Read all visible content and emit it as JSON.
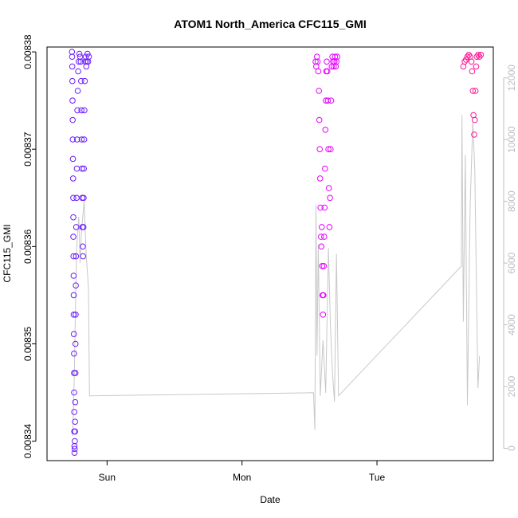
{
  "chart_data": {
    "type": "scatter",
    "title": "ATOM1 North_America CFC115_GMI",
    "xlabel": "Date",
    "ylabel": "CFC115_GMI",
    "x_ticks": [
      {
        "day": 1,
        "label": "Sun"
      },
      {
        "day": 2,
        "label": "Mon"
      },
      {
        "day": 3,
        "label": "Tue"
      }
    ],
    "xlim": [
      0.555,
      3.862
    ],
    "ylim": [
      0.008338,
      0.0083805
    ],
    "y_ticks": [
      {
        "value": 0.00834,
        "label": "0.00834"
      },
      {
        "value": 0.00835,
        "label": "0.00835"
      },
      {
        "value": 0.00836,
        "label": "0.00836"
      },
      {
        "value": 0.00837,
        "label": "0.00837"
      },
      {
        "value": 0.00838,
        "label": "0.00838"
      }
    ],
    "y2lim": [
      -400,
      13000
    ],
    "y2_ticks": [
      {
        "value": 0,
        "label": "0"
      },
      {
        "value": 2000,
        "label": "2000"
      },
      {
        "value": 4000,
        "label": "4000"
      },
      {
        "value": 6000,
        "label": "6000"
      },
      {
        "value": 8000,
        "label": "8000"
      },
      {
        "value": 10000,
        "label": "10000"
      },
      {
        "value": 12000,
        "label": "12000"
      }
    ],
    "grid": false,
    "colors": {
      "segment1": "#6a1bff",
      "segment2": "#e600ff",
      "segment3": "#ff1493",
      "altitude_line": "#c8c8c8"
    },
    "series": [
      {
        "marker": "open-circle",
        "color": "#6a1bff",
        "points": [
          {
            "x": 0.74,
            "y": 0.00838
          },
          {
            "x": 0.741,
            "y": 0.0083795
          },
          {
            "x": 0.742,
            "y": 0.0083785
          },
          {
            "x": 0.743,
            "y": 0.008377
          },
          {
            "x": 0.744,
            "y": 0.008375
          },
          {
            "x": 0.745,
            "y": 0.008373
          },
          {
            "x": 0.746,
            "y": 0.008371
          },
          {
            "x": 0.747,
            "y": 0.008369
          },
          {
            "x": 0.748,
            "y": 0.008367
          },
          {
            "x": 0.749,
            "y": 0.008365
          },
          {
            "x": 0.75,
            "y": 0.008363
          },
          {
            "x": 0.75,
            "y": 0.008361
          },
          {
            "x": 0.751,
            "y": 0.008359
          },
          {
            "x": 0.752,
            "y": 0.008357
          },
          {
            "x": 0.753,
            "y": 0.008355
          },
          {
            "x": 0.753,
            "y": 0.008353
          },
          {
            "x": 0.754,
            "y": 0.008351
          },
          {
            "x": 0.755,
            "y": 0.008349
          },
          {
            "x": 0.755,
            "y": 0.008347
          },
          {
            "x": 0.756,
            "y": 0.008345
          },
          {
            "x": 0.757,
            "y": 0.008343
          },
          {
            "x": 0.757,
            "y": 0.008341
          },
          {
            "x": 0.758,
            "y": 0.0083395
          },
          {
            "x": 0.759,
            "y": 0.0083388
          },
          {
            "x": 0.76,
            "y": 0.0083392
          },
          {
            "x": 0.761,
            "y": 0.00834
          },
          {
            "x": 0.762,
            "y": 0.008341
          },
          {
            "x": 0.763,
            "y": 0.008342
          },
          {
            "x": 0.764,
            "y": 0.008344
          },
          {
            "x": 0.765,
            "y": 0.008347
          },
          {
            "x": 0.766,
            "y": 0.00835
          },
          {
            "x": 0.767,
            "y": 0.008353
          },
          {
            "x": 0.768,
            "y": 0.008356
          },
          {
            "x": 0.77,
            "y": 0.008359
          },
          {
            "x": 0.772,
            "y": 0.008362
          },
          {
            "x": 0.774,
            "y": 0.008365
          },
          {
            "x": 0.776,
            "y": 0.008368
          },
          {
            "x": 0.778,
            "y": 0.008371
          },
          {
            "x": 0.78,
            "y": 0.008374
          },
          {
            "x": 0.783,
            "y": 0.008376
          },
          {
            "x": 0.786,
            "y": 0.008378
          },
          {
            "x": 0.79,
            "y": 0.008379
          },
          {
            "x": 0.795,
            "y": 0.0083798
          },
          {
            "x": 0.8,
            "y": 0.0083795
          },
          {
            "x": 0.805,
            "y": 0.008379
          },
          {
            "x": 0.808,
            "y": 0.008377
          },
          {
            "x": 0.81,
            "y": 0.008374
          },
          {
            "x": 0.812,
            "y": 0.008371
          },
          {
            "x": 0.814,
            "y": 0.008368
          },
          {
            "x": 0.816,
            "y": 0.008365
          },
          {
            "x": 0.818,
            "y": 0.008362
          },
          {
            "x": 0.82,
            "y": 0.00836
          },
          {
            "x": 0.822,
            "y": 0.008359
          },
          {
            "x": 0.824,
            "y": 0.008362
          },
          {
            "x": 0.826,
            "y": 0.008365
          },
          {
            "x": 0.828,
            "y": 0.008368
          },
          {
            "x": 0.83,
            "y": 0.008371
          },
          {
            "x": 0.832,
            "y": 0.008374
          },
          {
            "x": 0.835,
            "y": 0.008377
          },
          {
            "x": 0.838,
            "y": 0.008379
          },
          {
            "x": 0.842,
            "y": 0.0083795
          },
          {
            "x": 0.846,
            "y": 0.0083785
          },
          {
            "x": 0.85,
            "y": 0.008379
          },
          {
            "x": 0.855,
            "y": 0.0083798
          },
          {
            "x": 0.86,
            "y": 0.008379
          },
          {
            "x": 0.865,
            "y": 0.0083795
          }
        ]
      },
      {
        "marker": "open-circle",
        "color": "#e600ff",
        "points": [
          {
            "x": 2.545,
            "y": 0.008379
          },
          {
            "x": 2.55,
            "y": 0.0083785
          },
          {
            "x": 2.555,
            "y": 0.0083795
          },
          {
            "x": 2.56,
            "y": 0.008379
          },
          {
            "x": 2.565,
            "y": 0.008378
          },
          {
            "x": 2.57,
            "y": 0.008376
          },
          {
            "x": 2.573,
            "y": 0.008373
          },
          {
            "x": 2.576,
            "y": 0.00837
          },
          {
            "x": 2.579,
            "y": 0.008367
          },
          {
            "x": 2.582,
            "y": 0.008364
          },
          {
            "x": 2.585,
            "y": 0.008361
          },
          {
            "x": 2.588,
            "y": 0.00836
          },
          {
            "x": 2.591,
            "y": 0.008362
          },
          {
            "x": 2.594,
            "y": 0.008358
          },
          {
            "x": 2.597,
            "y": 0.008355
          },
          {
            "x": 2.6,
            "y": 0.008353
          },
          {
            "x": 2.603,
            "y": 0.008355
          },
          {
            "x": 2.606,
            "y": 0.008358
          },
          {
            "x": 2.609,
            "y": 0.008361
          },
          {
            "x": 2.612,
            "y": 0.008364
          },
          {
            "x": 2.615,
            "y": 0.008368
          },
          {
            "x": 2.618,
            "y": 0.008372
          },
          {
            "x": 2.621,
            "y": 0.008375
          },
          {
            "x": 2.624,
            "y": 0.008378
          },
          {
            "x": 2.628,
            "y": 0.008379
          },
          {
            "x": 2.632,
            "y": 0.008378
          },
          {
            "x": 2.636,
            "y": 0.008375
          },
          {
            "x": 2.64,
            "y": 0.00837
          },
          {
            "x": 2.644,
            "y": 0.008366
          },
          {
            "x": 2.648,
            "y": 0.008362
          },
          {
            "x": 2.652,
            "y": 0.008365
          },
          {
            "x": 2.656,
            "y": 0.00837
          },
          {
            "x": 2.66,
            "y": 0.008375
          },
          {
            "x": 2.665,
            "y": 0.0083785
          },
          {
            "x": 2.67,
            "y": 0.0083795
          },
          {
            "x": 2.675,
            "y": 0.008379
          },
          {
            "x": 2.68,
            "y": 0.0083785
          },
          {
            "x": 2.685,
            "y": 0.008379
          },
          {
            "x": 2.69,
            "y": 0.0083795
          },
          {
            "x": 2.695,
            "y": 0.0083785
          },
          {
            "x": 2.7,
            "y": 0.008379
          },
          {
            "x": 2.706,
            "y": 0.0083795
          }
        ]
      },
      {
        "marker": "open-circle",
        "color": "#ff1493",
        "points": [
          {
            "x": 3.64,
            "y": 0.0083785
          },
          {
            "x": 3.65,
            "y": 0.008379
          },
          {
            "x": 3.66,
            "y": 0.0083792
          },
          {
            "x": 3.67,
            "y": 0.0083795
          },
          {
            "x": 3.68,
            "y": 0.0083797
          },
          {
            "x": 3.69,
            "y": 0.0083795
          },
          {
            "x": 3.7,
            "y": 0.008379
          },
          {
            "x": 3.705,
            "y": 0.008378
          },
          {
            "x": 3.71,
            "y": 0.008376
          },
          {
            "x": 3.715,
            "y": 0.0083735
          },
          {
            "x": 3.72,
            "y": 0.0083715
          },
          {
            "x": 3.725,
            "y": 0.008373
          },
          {
            "x": 3.73,
            "y": 0.008376
          },
          {
            "x": 3.735,
            "y": 0.0083785
          },
          {
            "x": 3.74,
            "y": 0.0083795
          },
          {
            "x": 3.75,
            "y": 0.0083797
          },
          {
            "x": 3.76,
            "y": 0.0083795
          },
          {
            "x": 3.77,
            "y": 0.0083797
          }
        ]
      },
      {
        "axis": "right",
        "type": "line",
        "color": "#c8c8c8",
        "points": [
          {
            "x": 0.745,
            "y": 400
          },
          {
            "x": 0.75,
            "y": 1200
          },
          {
            "x": 0.758,
            "y": 2500
          },
          {
            "x": 0.765,
            "y": 4500
          },
          {
            "x": 0.775,
            "y": 6500
          },
          {
            "x": 0.79,
            "y": 7500
          },
          {
            "x": 0.8,
            "y": 6000
          },
          {
            "x": 0.81,
            "y": 7000
          },
          {
            "x": 0.83,
            "y": 8000
          },
          {
            "x": 0.845,
            "y": 6300
          },
          {
            "x": 0.862,
            "y": 5200
          },
          {
            "x": 0.87,
            "y": 1700
          },
          {
            "x": 2.53,
            "y": 1800
          },
          {
            "x": 2.54,
            "y": 600
          },
          {
            "x": 2.548,
            "y": 7900
          },
          {
            "x": 2.556,
            "y": 3000
          },
          {
            "x": 2.565,
            "y": 6600
          },
          {
            "x": 2.58,
            "y": 1700
          },
          {
            "x": 2.6,
            "y": 3500
          },
          {
            "x": 2.62,
            "y": 1800
          },
          {
            "x": 2.64,
            "y": 6500
          },
          {
            "x": 2.655,
            "y": 4000
          },
          {
            "x": 2.67,
            "y": 2500
          },
          {
            "x": 2.685,
            "y": 1500
          },
          {
            "x": 2.7,
            "y": 6300
          },
          {
            "x": 2.715,
            "y": 1700
          },
          {
            "x": 3.625,
            "y": 5900
          },
          {
            "x": 3.63,
            "y": 10800
          },
          {
            "x": 3.64,
            "y": 4100
          },
          {
            "x": 3.655,
            "y": 9500
          },
          {
            "x": 3.67,
            "y": 1400
          },
          {
            "x": 3.69,
            "y": 7800
          },
          {
            "x": 3.71,
            "y": 10600
          },
          {
            "x": 3.725,
            "y": 9000
          },
          {
            "x": 3.738,
            "y": 5000
          },
          {
            "x": 3.748,
            "y": 1950
          },
          {
            "x": 3.76,
            "y": 3000
          }
        ]
      }
    ]
  }
}
